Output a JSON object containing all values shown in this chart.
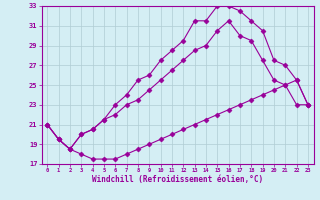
{
  "xlabel": "Windchill (Refroidissement éolien,°C)",
  "background_color": "#d4eef4",
  "line_color": "#990099",
  "marker": "D",
  "markersize": 2.5,
  "linewidth": 0.8,
  "xlim": [
    -0.5,
    23.5
  ],
  "ylim": [
    17,
    33
  ],
  "yticks": [
    17,
    19,
    21,
    23,
    25,
    27,
    29,
    31,
    33
  ],
  "xticks": [
    0,
    1,
    2,
    3,
    4,
    5,
    6,
    7,
    8,
    9,
    10,
    11,
    12,
    13,
    14,
    15,
    16,
    17,
    18,
    19,
    20,
    21,
    22,
    23
  ],
  "series": [
    {
      "x": [
        0,
        1,
        2,
        3,
        4,
        5,
        6,
        7,
        8,
        9,
        10,
        11,
        12,
        13,
        14,
        15,
        16,
        17,
        18,
        19,
        20,
        21,
        22,
        23
      ],
      "y": [
        21.0,
        19.5,
        18.5,
        18.0,
        17.5,
        17.5,
        17.5,
        18.0,
        18.5,
        19.0,
        19.5,
        20.0,
        20.5,
        21.0,
        21.5,
        22.0,
        22.5,
        23.0,
        23.5,
        24.0,
        24.5,
        25.0,
        25.5,
        23.0
      ]
    },
    {
      "x": [
        0,
        1,
        2,
        3,
        4,
        5,
        6,
        7,
        8,
        9,
        10,
        11,
        12,
        13,
        14,
        15,
        16,
        17,
        18,
        19,
        20,
        21,
        22,
        23
      ],
      "y": [
        21.0,
        19.5,
        18.5,
        20.0,
        20.5,
        21.5,
        22.0,
        23.0,
        23.5,
        24.5,
        25.5,
        26.5,
        27.5,
        28.5,
        29.0,
        30.5,
        31.5,
        30.0,
        29.5,
        27.5,
        25.5,
        25.0,
        23.0,
        23.0
      ]
    },
    {
      "x": [
        0,
        1,
        2,
        3,
        4,
        5,
        6,
        7,
        8,
        9,
        10,
        11,
        12,
        13,
        14,
        15,
        16,
        17,
        18,
        19,
        20,
        21,
        22,
        23
      ],
      "y": [
        21.0,
        19.5,
        18.5,
        20.0,
        20.5,
        21.5,
        23.0,
        24.0,
        25.5,
        26.0,
        27.5,
        28.5,
        29.5,
        31.5,
        31.5,
        33.0,
        33.0,
        32.5,
        31.5,
        30.5,
        27.5,
        27.0,
        25.5,
        23.0
      ]
    }
  ]
}
